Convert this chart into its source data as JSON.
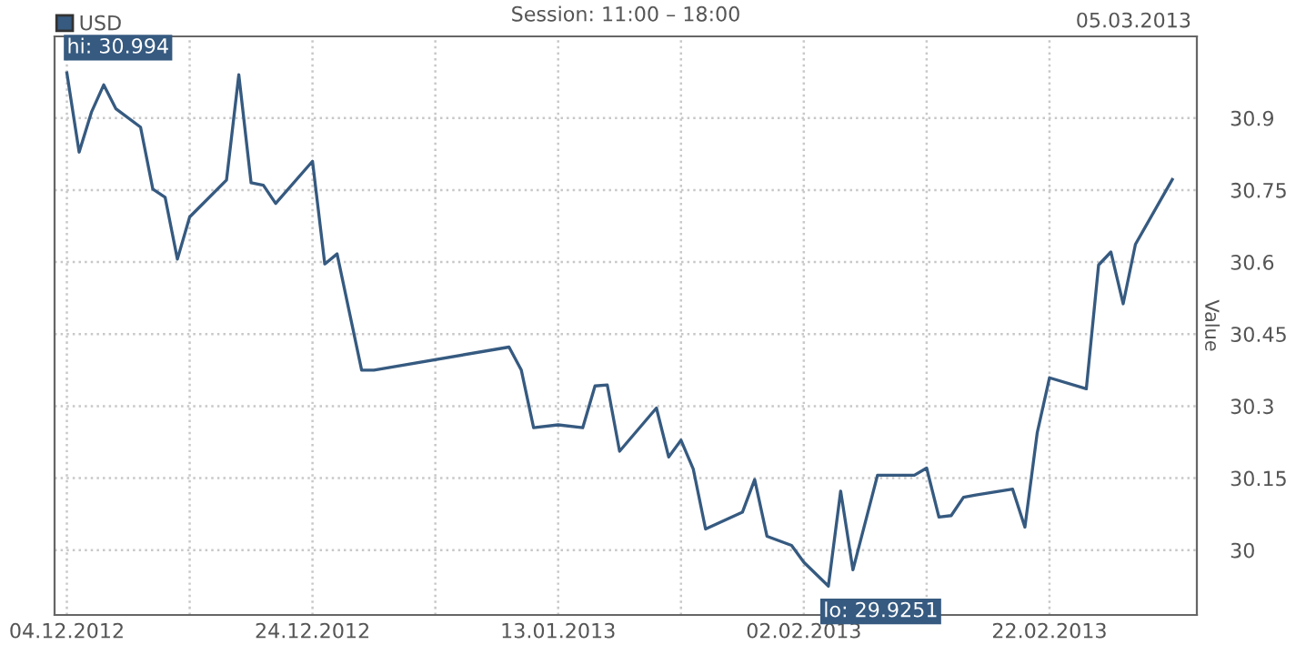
{
  "chart_data": {
    "type": "line",
    "title": "Session: 11:00 – 18:00",
    "ylabel": "Value",
    "annotations": [
      "05.03.2013",
      {
        "text": "hi: 30.994",
        "x": "2012-12-04",
        "y": 30.994
      },
      {
        "text": "lo: 29.9251",
        "x": "2013-02-04",
        "y": 29.9251
      }
    ],
    "x": [
      "2012-12-04",
      "2012-12-05",
      "2012-12-06",
      "2012-12-07",
      "2012-12-08",
      "2012-12-10",
      "2012-12-11",
      "2012-12-12",
      "2012-12-13",
      "2012-12-14",
      "2012-12-17",
      "2012-12-18",
      "2012-12-19",
      "2012-12-20",
      "2012-12-21",
      "2012-12-24",
      "2012-12-25",
      "2012-12-26",
      "2012-12-28",
      "2012-12-29",
      "2013-01-09",
      "2013-01-10",
      "2013-01-11",
      "2013-01-13",
      "2013-01-15",
      "2013-01-16",
      "2013-01-17",
      "2013-01-18",
      "2013-01-21",
      "2013-01-22",
      "2013-01-23",
      "2013-01-24",
      "2013-01-25",
      "2013-01-28",
      "2013-01-29",
      "2013-01-30",
      "2013-02-01",
      "2013-02-02",
      "2013-02-04",
      "2013-02-05",
      "2013-02-06",
      "2013-02-08",
      "2013-02-11",
      "2013-02-12",
      "2013-02-13",
      "2013-02-14",
      "2013-02-15",
      "2013-02-16",
      "2013-02-19",
      "2013-02-20",
      "2013-02-21",
      "2013-02-22",
      "2013-02-25",
      "2013-02-26",
      "2013-02-27",
      "2013-02-28",
      "2013-03-01",
      "2013-03-04"
    ],
    "series": [
      {
        "name": "USD",
        "color": "#365a80",
        "values": [
          30.994,
          30.829,
          30.912,
          30.969,
          30.919,
          30.881,
          30.752,
          30.735,
          30.606,
          30.694,
          30.771,
          30.99,
          30.765,
          30.76,
          30.722,
          30.81,
          30.596,
          30.617,
          30.375,
          30.375,
          30.423,
          30.375,
          30.255,
          30.261,
          30.255,
          30.342,
          30.344,
          30.206,
          30.296,
          30.194,
          30.229,
          30.169,
          30.044,
          30.079,
          30.147,
          30.029,
          30.01,
          29.975,
          29.9251,
          30.123,
          29.959,
          30.156,
          30.156,
          30.171,
          30.069,
          30.072,
          30.11,
          30.115,
          30.127,
          30.048,
          30.244,
          30.359,
          30.336,
          30.594,
          30.621,
          30.513,
          30.637,
          30.772
        ]
      }
    ],
    "xlim": [
      "2012-12-03",
      "2013-03-06"
    ],
    "xticks": [
      {
        "value": "2012-12-04",
        "label": "04.12.2012"
      },
      {
        "value": "2012-12-14",
        "label": null
      },
      {
        "value": "2012-12-24",
        "label": "24.12.2012"
      },
      {
        "value": "2013-01-03",
        "label": null
      },
      {
        "value": "2013-01-13",
        "label": "13.01.2013"
      },
      {
        "value": "2013-01-23",
        "label": null
      },
      {
        "value": "2013-02-02",
        "label": "02.02.2013"
      },
      {
        "value": "2013-02-12",
        "label": null
      },
      {
        "value": "2013-02-22",
        "label": "22.02.2013"
      }
    ],
    "ylim": [
      29.865,
      31.07
    ],
    "yticks": [
      30,
      30.15,
      30.3,
      30.45,
      30.6,
      30.75,
      30.9
    ],
    "grid": true,
    "legend": "top left",
    "marker": "none",
    "line_style": "solid"
  }
}
